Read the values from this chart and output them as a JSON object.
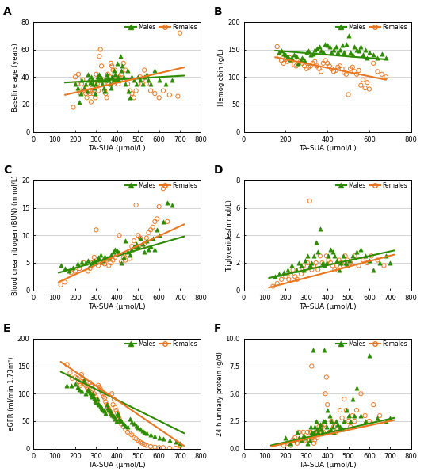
{
  "panels": [
    {
      "label": "A",
      "ylabel": "Baseline age (years)",
      "ylim": [
        0,
        80
      ],
      "yticks": [
        0,
        20,
        40,
        60,
        80
      ],
      "xlim": [
        0,
        800
      ],
      "xticks": [
        0,
        100,
        200,
        300,
        400,
        500,
        600,
        700,
        800
      ],
      "male_line": [
        150,
        36,
        720,
        41
      ],
      "female_line": [
        150,
        27,
        720,
        47
      ],
      "male_x": [
        200,
        210,
        220,
        225,
        230,
        240,
        250,
        255,
        260,
        265,
        270,
        275,
        280,
        285,
        290,
        295,
        300,
        305,
        310,
        315,
        320,
        325,
        330,
        335,
        340,
        345,
        350,
        355,
        360,
        365,
        370,
        375,
        380,
        385,
        390,
        395,
        400,
        405,
        410,
        415,
        420,
        425,
        430,
        440,
        450,
        455,
        460,
        470,
        480,
        490,
        500,
        510,
        520,
        530,
        540,
        550,
        560,
        580,
        600,
        630,
        660
      ],
      "male_y": [
        35,
        32,
        22,
        28,
        38,
        32,
        35,
        30,
        42,
        38,
        36,
        40,
        38,
        35,
        32,
        28,
        35,
        40,
        38,
        42,
        40,
        38,
        35,
        32,
        30,
        38,
        42,
        40,
        38,
        35,
        32,
        40,
        38,
        45,
        42,
        38,
        50,
        40,
        38,
        55,
        45,
        48,
        40,
        35,
        45,
        30,
        25,
        40,
        38,
        35,
        40,
        38,
        35,
        40,
        42,
        38,
        35,
        45,
        38,
        35,
        38
      ],
      "female_x": [
        190,
        200,
        210,
        215,
        220,
        225,
        230,
        235,
        240,
        245,
        250,
        255,
        260,
        265,
        270,
        275,
        280,
        285,
        290,
        295,
        300,
        305,
        310,
        315,
        320,
        325,
        330,
        335,
        340,
        345,
        350,
        355,
        360,
        365,
        370,
        375,
        380,
        385,
        390,
        395,
        400,
        405,
        410,
        415,
        420,
        430,
        440,
        450,
        460,
        470,
        480,
        490,
        500,
        510,
        520,
        530,
        540,
        560,
        580,
        600,
        620,
        650,
        690,
        700
      ],
      "female_y": [
        18,
        40,
        35,
        42,
        30,
        28,
        35,
        38,
        32,
        30,
        28,
        25,
        35,
        30,
        28,
        22,
        32,
        28,
        30,
        25,
        42,
        35,
        30,
        55,
        60,
        48,
        38,
        35,
        30,
        28,
        25,
        42,
        35,
        40,
        50,
        48,
        45,
        35,
        45,
        40,
        38,
        35,
        40,
        38,
        42,
        50,
        45,
        35,
        30,
        28,
        25,
        30,
        35,
        40,
        38,
        45,
        35,
        30,
        28,
        25,
        30,
        27,
        26,
        72
      ]
    },
    {
      "label": "B",
      "ylabel": "Hemoglobin (g/L)",
      "ylim": [
        0,
        200
      ],
      "yticks": [
        0,
        50,
        100,
        150,
        200
      ],
      "xlim": [
        0,
        800
      ],
      "xticks": [
        0,
        200,
        400,
        600,
        800
      ],
      "male_line": [
        150,
        148,
        680,
        132
      ],
      "female_line": [
        150,
        136,
        680,
        95
      ],
      "male_x": [
        170,
        180,
        190,
        200,
        210,
        220,
        230,
        240,
        250,
        260,
        270,
        280,
        290,
        300,
        310,
        320,
        330,
        340,
        350,
        360,
        370,
        380,
        390,
        400,
        410,
        420,
        430,
        440,
        450,
        460,
        470,
        480,
        490,
        500,
        510,
        520,
        530,
        540,
        550,
        560,
        570,
        580,
        590,
        600,
        620,
        640,
        660,
        680
      ],
      "male_y": [
        145,
        148,
        142,
        140,
        138,
        132,
        135,
        140,
        138,
        125,
        130,
        135,
        130,
        145,
        148,
        140,
        142,
        150,
        152,
        155,
        148,
        145,
        160,
        158,
        155,
        145,
        150,
        155,
        145,
        150,
        158,
        145,
        160,
        175,
        145,
        140,
        155,
        150,
        148,
        155,
        140,
        150,
        135,
        145,
        140,
        135,
        142,
        135
      ],
      "female_x": [
        160,
        170,
        180,
        190,
        200,
        210,
        220,
        230,
        240,
        250,
        260,
        270,
        280,
        290,
        300,
        310,
        320,
        330,
        340,
        350,
        360,
        370,
        380,
        390,
        400,
        410,
        420,
        430,
        440,
        450,
        460,
        470,
        480,
        490,
        500,
        510,
        520,
        530,
        540,
        550,
        560,
        570,
        580,
        590,
        600,
        620,
        640,
        660,
        680
      ],
      "female_y": [
        155,
        138,
        130,
        125,
        132,
        128,
        135,
        130,
        122,
        120,
        130,
        128,
        125,
        120,
        115,
        118,
        120,
        125,
        128,
        120,
        115,
        110,
        125,
        130,
        125,
        120,
        115,
        110,
        112,
        118,
        120,
        115,
        108,
        105,
        68,
        115,
        118,
        110,
        105,
        112,
        85,
        95,
        80,
        90,
        78,
        125,
        110,
        105,
        100
      ]
    },
    {
      "label": "C",
      "ylabel": "Blood urea nitrogen (BUN) (mmol/L)",
      "ylim": [
        0,
        20
      ],
      "yticks": [
        0,
        5,
        10,
        15,
        20
      ],
      "xlim": [
        0,
        800
      ],
      "xticks": [
        0,
        100,
        200,
        300,
        400,
        500,
        600,
        700,
        800
      ],
      "male_line": [
        120,
        3.2,
        720,
        9.8
      ],
      "female_line": [
        120,
        1.5,
        720,
        12.0
      ],
      "male_x": [
        130,
        150,
        170,
        190,
        210,
        230,
        250,
        260,
        270,
        280,
        290,
        300,
        310,
        320,
        330,
        340,
        350,
        360,
        370,
        380,
        390,
        400,
        410,
        420,
        430,
        440,
        450,
        460,
        470,
        480,
        490,
        500,
        510,
        520,
        530,
        540,
        550,
        560,
        570,
        580,
        590,
        600,
        620,
        640,
        660
      ],
      "male_y": [
        4.5,
        4.0,
        3.5,
        4.2,
        4.8,
        5.2,
        5.0,
        5.5,
        4.5,
        5.0,
        5.5,
        5.2,
        6.0,
        6.5,
        5.5,
        6.2,
        5.8,
        6.0,
        6.5,
        7.0,
        7.5,
        7.2,
        6.8,
        5.0,
        6.0,
        9.0,
        7.0,
        6.5,
        7.5,
        8.0,
        8.5,
        8.0,
        9.5,
        8.5,
        7.0,
        9.0,
        7.5,
        8.0,
        9.5,
        7.5,
        11.0,
        10.0,
        12.5,
        16.0,
        15.5
      ],
      "female_x": [
        130,
        150,
        180,
        200,
        220,
        240,
        260,
        270,
        280,
        290,
        300,
        310,
        320,
        330,
        340,
        350,
        360,
        370,
        380,
        390,
        400,
        410,
        420,
        430,
        440,
        450,
        460,
        470,
        480,
        490,
        500,
        510,
        520,
        530,
        540,
        550,
        560,
        570,
        580,
        590,
        600,
        620,
        640
      ],
      "female_y": [
        1.0,
        1.5,
        3.2,
        3.5,
        4.0,
        5.0,
        3.5,
        4.0,
        5.0,
        6.0,
        11.0,
        4.5,
        5.2,
        5.0,
        4.8,
        5.5,
        4.5,
        5.0,
        5.5,
        6.0,
        6.5,
        10.0,
        5.2,
        6.0,
        5.5,
        6.5,
        5.8,
        8.0,
        9.0,
        15.5,
        10.0,
        9.5,
        8.0,
        8.5,
        9.5,
        10.5,
        11.0,
        11.5,
        12.5,
        13.0,
        15.2,
        18.5,
        12.5
      ]
    },
    {
      "label": "D",
      "ylabel": "Triglycerides(mmol/L)",
      "ylim": [
        0,
        8
      ],
      "yticks": [
        0,
        2,
        4,
        6,
        8
      ],
      "xlim": [
        0,
        800
      ],
      "xticks": [
        0,
        100,
        200,
        300,
        400,
        500,
        600,
        700,
        800
      ],
      "male_line": [
        120,
        0.9,
        720,
        2.9
      ],
      "female_line": [
        120,
        0.2,
        720,
        2.6
      ],
      "male_x": [
        150,
        170,
        190,
        210,
        230,
        250,
        265,
        275,
        285,
        295,
        305,
        315,
        325,
        335,
        345,
        355,
        365,
        375,
        385,
        395,
        405,
        415,
        425,
        435,
        445,
        455,
        465,
        475,
        485,
        495,
        505,
        520,
        540,
        560,
        580,
        600,
        620,
        650,
        680,
        700
      ],
      "male_y": [
        1.0,
        1.2,
        1.3,
        1.5,
        1.8,
        1.5,
        2.0,
        1.8,
        1.5,
        2.2,
        2.5,
        1.8,
        2.0,
        2.5,
        3.5,
        2.8,
        4.5,
        2.0,
        1.8,
        2.0,
        2.5,
        3.0,
        2.8,
        2.5,
        2.2,
        1.5,
        2.0,
        2.5,
        2.0,
        1.8,
        2.2,
        2.5,
        2.8,
        3.0,
        2.5,
        2.2,
        1.5,
        2.0,
        2.5,
        2.0
      ],
      "female_x": [
        140,
        160,
        180,
        200,
        215,
        225,
        235,
        245,
        255,
        265,
        275,
        285,
        295,
        305,
        315,
        325,
        335,
        345,
        355,
        365,
        375,
        385,
        395,
        405,
        415,
        425,
        435,
        445,
        455,
        465,
        475,
        485,
        495,
        510,
        530,
        550,
        570,
        590,
        610,
        640,
        670
      ],
      "female_y": [
        0.3,
        0.5,
        0.8,
        1.0,
        0.8,
        1.2,
        1.5,
        1.0,
        0.8,
        1.5,
        1.2,
        1.8,
        1.5,
        2.0,
        6.5,
        1.5,
        1.8,
        2.0,
        1.5,
        2.5,
        2.0,
        1.8,
        2.5,
        2.2,
        2.0,
        1.8,
        1.5,
        1.8,
        2.2,
        2.0,
        1.8,
        2.5,
        2.2,
        2.0,
        2.5,
        1.8,
        2.2,
        2.0,
        2.5,
        2.2,
        1.8
      ]
    },
    {
      "label": "E",
      "ylabel": "eGFR (ml/min·1.73m²)",
      "ylim": [
        0,
        200
      ],
      "yticks": [
        0,
        50,
        100,
        150,
        200
      ],
      "xlim": [
        0,
        800
      ],
      "xticks": [
        0,
        100,
        200,
        300,
        400,
        500,
        600,
        700,
        800
      ],
      "male_line": [
        130,
        140,
        720,
        28
      ],
      "female_line": [
        130,
        158,
        720,
        5
      ],
      "male_x": [
        160,
        180,
        200,
        210,
        220,
        230,
        240,
        250,
        260,
        265,
        270,
        275,
        280,
        285,
        290,
        295,
        300,
        305,
        310,
        315,
        320,
        325,
        330,
        335,
        340,
        345,
        350,
        355,
        360,
        365,
        370,
        375,
        380,
        385,
        390,
        395,
        400,
        405,
        410,
        415,
        420,
        430,
        440,
        450,
        460,
        470,
        480,
        490,
        500,
        510,
        520,
        530,
        540,
        560,
        580,
        600,
        620,
        650,
        680,
        700
      ],
      "male_y": [
        115,
        115,
        118,
        112,
        108,
        105,
        125,
        100,
        108,
        105,
        102,
        98,
        95,
        100,
        92,
        88,
        85,
        90,
        82,
        80,
        78,
        75,
        72,
        70,
        68,
        65,
        80,
        75,
        72,
        68,
        65,
        62,
        60,
        58,
        55,
        50,
        65,
        62,
        55,
        52,
        50,
        45,
        42,
        40,
        55,
        48,
        45,
        42,
        38,
        35,
        32,
        30,
        28,
        25,
        22,
        20,
        18,
        15,
        12,
        10
      ],
      "female_x": [
        160,
        175,
        185,
        200,
        210,
        215,
        220,
        225,
        230,
        235,
        240,
        245,
        250,
        255,
        260,
        265,
        270,
        275,
        280,
        285,
        290,
        295,
        300,
        305,
        310,
        315,
        320,
        325,
        330,
        335,
        340,
        345,
        350,
        355,
        360,
        365,
        370,
        375,
        380,
        385,
        390,
        395,
        400,
        405,
        410,
        415,
        420,
        430,
        440,
        450,
        460,
        470,
        480,
        490,
        500,
        510,
        520,
        530,
        540,
        560,
        580,
        600,
        620,
        650,
        680,
        700
      ],
      "female_y": [
        153,
        138,
        128,
        130,
        128,
        122,
        118,
        115,
        135,
        128,
        122,
        118,
        115,
        112,
        108,
        105,
        120,
        115,
        110,
        108,
        100,
        95,
        90,
        88,
        115,
        112,
        108,
        105,
        100,
        95,
        92,
        85,
        80,
        75,
        72,
        68,
        65,
        100,
        80,
        90,
        75,
        70,
        65,
        60,
        55,
        50,
        45,
        40,
        35,
        30,
        28,
        25,
        20,
        18,
        15,
        12,
        10,
        8,
        6,
        4,
        3,
        2,
        2,
        1,
        1,
        5
      ]
    },
    {
      "label": "F",
      "ylabel": "24 h urinary protein (g/d)",
      "ylim": [
        0,
        10
      ],
      "yticks": [
        0,
        2.5,
        5.0,
        7.5,
        10.0
      ],
      "xlim": [
        0,
        800
      ],
      "xticks": [
        0,
        100,
        200,
        300,
        400,
        500,
        600,
        700,
        800
      ],
      "male_line": [
        130,
        0.3,
        720,
        2.8
      ],
      "female_line": [
        130,
        0.2,
        720,
        2.6
      ],
      "male_x": [
        200,
        220,
        240,
        255,
        265,
        275,
        285,
        295,
        305,
        315,
        320,
        325,
        330,
        335,
        340,
        345,
        350,
        355,
        360,
        365,
        370,
        375,
        380,
        385,
        390,
        395,
        400,
        405,
        410,
        415,
        420,
        425,
        430,
        440,
        450,
        460,
        470,
        480,
        490,
        500,
        510,
        520,
        530,
        540,
        560,
        580,
        600,
        640,
        680,
        700
      ],
      "male_y": [
        1.0,
        0.5,
        0.8,
        1.5,
        1.0,
        0.8,
        1.2,
        1.0,
        0.5,
        0.8,
        2.0,
        1.5,
        9.0,
        1.5,
        2.0,
        2.5,
        1.8,
        1.5,
        2.0,
        2.2,
        1.8,
        1.5,
        2.5,
        9.0,
        2.5,
        2.0,
        3.5,
        1.5,
        3.0,
        1.8,
        2.5,
        2.0,
        1.5,
        2.5,
        2.2,
        2.0,
        1.8,
        2.5,
        3.5,
        3.0,
        2.5,
        4.5,
        3.0,
        5.5,
        3.0,
        2.5,
        8.5,
        2.8,
        2.5,
        2.8
      ],
      "female_x": [
        190,
        210,
        225,
        235,
        245,
        255,
        265,
        275,
        285,
        295,
        305,
        315,
        320,
        325,
        330,
        335,
        340,
        345,
        350,
        355,
        360,
        365,
        370,
        375,
        380,
        385,
        390,
        395,
        400,
        410,
        420,
        430,
        440,
        450,
        460,
        470,
        480,
        490,
        500,
        510,
        520,
        530,
        540,
        560,
        580,
        600,
        620,
        650
      ],
      "female_y": [
        0.3,
        0.5,
        0.3,
        0.8,
        1.0,
        0.5,
        1.5,
        0.8,
        1.5,
        0.8,
        1.5,
        0.8,
        1.5,
        7.5,
        1.0,
        0.5,
        0.8,
        1.5,
        1.0,
        1.5,
        2.0,
        1.5,
        1.8,
        2.0,
        1.5,
        2.2,
        5.0,
        6.5,
        4.0,
        1.5,
        2.5,
        2.0,
        1.5,
        1.8,
        3.5,
        2.8,
        4.5,
        3.5,
        2.5,
        2.0,
        3.0,
        2.5,
        3.5,
        5.0,
        3.0,
        2.5,
        4.0,
        3.0
      ]
    }
  ],
  "male_color": "#2d8b00",
  "female_color": "#e87722",
  "xlabel": "TA-SUA (μmol/L)",
  "background_color": "#ffffff",
  "grid_color": "#cccccc",
  "line_width": 1.5,
  "marker_size_male": 14,
  "marker_size_female": 14
}
